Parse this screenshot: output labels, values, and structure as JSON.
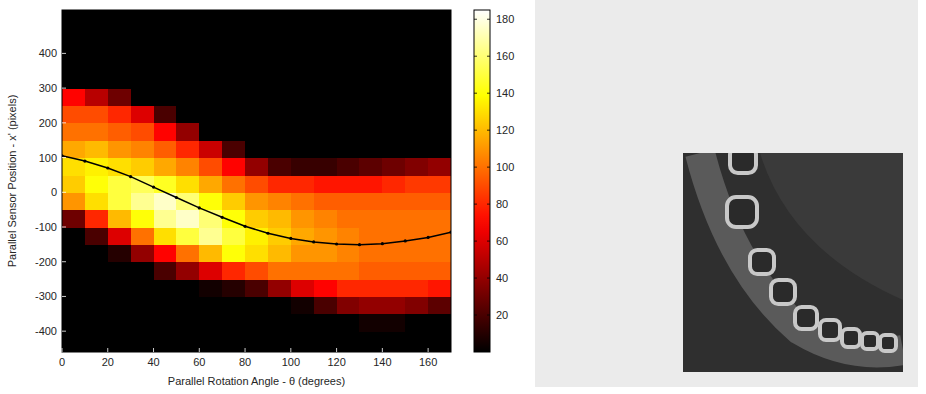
{
  "chart_data": {
    "type": "heatmap",
    "x_label": "Parallel Rotation Angle - θ (degrees)",
    "y_label": "Parallel Sensor Position - x' (pixels)",
    "xlim": [
      0,
      170
    ],
    "ylim": [
      -460,
      525
    ],
    "xticks": [
      0,
      20,
      40,
      60,
      80,
      100,
      120,
      140,
      160
    ],
    "yticks": [
      -400,
      -300,
      -200,
      -100,
      0,
      100,
      200,
      300,
      400
    ],
    "x": [
      5,
      15,
      25,
      35,
      45,
      55,
      65,
      75,
      85,
      95,
      105,
      115,
      125,
      135,
      145,
      155,
      165
    ],
    "y": [
      -425,
      -375,
      -325,
      -275,
      -225,
      -175,
      -125,
      -75,
      -25,
      25,
      75,
      125,
      175,
      225,
      275,
      325,
      375,
      425,
      475
    ],
    "z": [
      [
        0,
        0,
        0,
        0,
        0,
        0,
        0,
        0,
        0,
        0,
        0,
        0,
        0,
        0,
        0,
        0,
        0
      ],
      [
        0,
        0,
        0,
        0,
        0,
        0,
        0,
        0,
        0,
        0,
        0,
        0,
        0,
        5,
        5,
        0,
        0
      ],
      [
        0,
        0,
        0,
        0,
        0,
        0,
        0,
        0,
        0,
        0,
        5,
        20,
        35,
        40,
        40,
        35,
        25
      ],
      [
        0,
        0,
        0,
        0,
        0,
        0,
        5,
        10,
        20,
        40,
        60,
        70,
        80,
        80,
        80,
        80,
        75
      ],
      [
        0,
        0,
        0,
        0,
        20,
        40,
        60,
        80,
        90,
        100,
        100,
        100,
        100,
        95,
        95,
        95,
        95
      ],
      [
        0,
        0,
        10,
        40,
        70,
        100,
        120,
        140,
        130,
        120,
        110,
        110,
        105,
        100,
        100,
        100,
        100
      ],
      [
        0,
        20,
        60,
        100,
        130,
        150,
        165,
        150,
        135,
        125,
        115,
        110,
        105,
        100,
        100,
        100,
        100
      ],
      [
        30,
        80,
        120,
        140,
        165,
        175,
        160,
        140,
        125,
        120,
        110,
        105,
        100,
        100,
        100,
        100,
        100
      ],
      [
        110,
        130,
        150,
        165,
        175,
        160,
        140,
        125,
        110,
        105,
        100,
        95,
        95,
        95,
        95,
        95,
        95
      ],
      [
        125,
        140,
        150,
        155,
        145,
        130,
        115,
        100,
        90,
        80,
        80,
        75,
        75,
        75,
        80,
        85,
        85
      ],
      [
        130,
        135,
        130,
        125,
        115,
        105,
        90,
        70,
        40,
        20,
        15,
        15,
        20,
        25,
        30,
        35,
        40
      ],
      [
        115,
        120,
        110,
        105,
        95,
        80,
        55,
        20,
        0,
        0,
        0,
        0,
        0,
        0,
        0,
        0,
        0
      ],
      [
        100,
        100,
        95,
        90,
        70,
        40,
        0,
        0,
        0,
        0,
        0,
        0,
        0,
        0,
        0,
        0,
        0
      ],
      [
        90,
        90,
        80,
        60,
        20,
        0,
        0,
        0,
        0,
        0,
        0,
        0,
        0,
        0,
        0,
        0,
        0
      ],
      [
        70,
        50,
        30,
        0,
        0,
        0,
        0,
        0,
        0,
        0,
        0,
        0,
        0,
        0,
        0,
        0,
        0
      ],
      [
        0,
        0,
        0,
        0,
        0,
        0,
        0,
        0,
        0,
        0,
        0,
        0,
        0,
        0,
        0,
        0,
        0
      ],
      [
        0,
        0,
        0,
        0,
        0,
        0,
        0,
        0,
        0,
        0,
        0,
        0,
        0,
        0,
        0,
        0,
        0
      ],
      [
        0,
        0,
        0,
        0,
        0,
        0,
        0,
        0,
        0,
        0,
        0,
        0,
        0,
        0,
        0,
        0,
        0
      ],
      [
        0,
        0,
        0,
        0,
        0,
        0,
        0,
        0,
        0,
        0,
        0,
        0,
        0,
        0,
        0,
        0,
        0
      ]
    ],
    "colorbar_lim": [
      0,
      185
    ],
    "colorbar_ticks": [
      20,
      40,
      60,
      80,
      100,
      120,
      140,
      160,
      180
    ],
    "series": [
      {
        "x": [
          0,
          10,
          20,
          30,
          40,
          50,
          60,
          70,
          80,
          90,
          100,
          110,
          120,
          130,
          140,
          150,
          160,
          170
        ],
        "values": [
          105,
          90,
          70,
          45,
          15,
          -15,
          -45,
          -72,
          -98,
          -118,
          -133,
          -143,
          -149,
          -151,
          -148,
          -140,
          -130,
          -115
        ],
        "color": "#000000",
        "marker": "dot",
        "line_style": "solid"
      }
    ]
  }
}
